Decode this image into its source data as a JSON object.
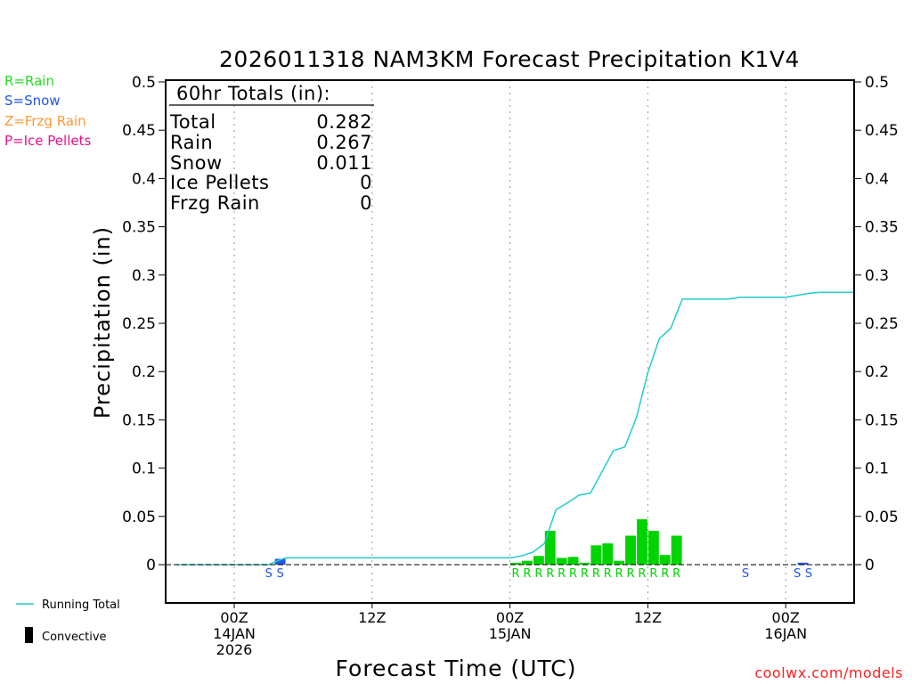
{
  "chart_data": {
    "type": "bar",
    "title": "2026011318 NAM3KM Forecast Precipitation K1V4",
    "xlabel": "Forecast Time (UTC)",
    "ylabel": "Precipitation (in)",
    "ylim": [
      -0.04,
      0.5
    ],
    "xlim": [
      -6,
      54
    ],
    "y_ticks": [
      "0.5",
      "0.45",
      "0.4",
      "0.35",
      "0.3",
      "0.25",
      "0.2",
      "0.15",
      "0.1",
      "0.05",
      "0"
    ],
    "x_ticks": [
      {
        "hour": 0,
        "lines": [
          "00Z",
          "14JAN",
          "2026"
        ]
      },
      {
        "hour": 12,
        "lines": [
          "12Z"
        ]
      },
      {
        "hour": 24,
        "lines": [
          "00Z",
          "15JAN"
        ]
      },
      {
        "hour": 36,
        "lines": [
          "12Z"
        ]
      },
      {
        "hour": 48,
        "lines": [
          "00Z",
          "16JAN"
        ]
      }
    ],
    "legend": [
      {
        "label": "R=Rain",
        "color": "#22dd22"
      },
      {
        "label": "S=Snow",
        "color": "#2255ee"
      },
      {
        "label": "Z=Frzg Rain",
        "color": "#ff9933"
      },
      {
        "label": "P=Ice Pellets",
        "color": "#ee1188"
      }
    ],
    "bottom_legend": {
      "running_total": "Running Total",
      "convective": "Convective"
    },
    "totals": {
      "header": "60hr Totals (in):",
      "rows": [
        {
          "label": "Total",
          "value": "0.282"
        },
        {
          "label": "Rain",
          "value": "0.267"
        },
        {
          "label": "Snow",
          "value": "0.011"
        },
        {
          "label": "Ice Pellets",
          "value": "0"
        },
        {
          "label": "Frzg Rain",
          "value": "0"
        }
      ]
    },
    "bars": [
      {
        "hour": 4,
        "value": 0.006,
        "type": "S"
      },
      {
        "hour": 24.5,
        "value": 0.002,
        "type": "R"
      },
      {
        "hour": 25.5,
        "value": 0.004,
        "type": "R"
      },
      {
        "hour": 26.5,
        "value": 0.009,
        "type": "R"
      },
      {
        "hour": 27.5,
        "value": 0.035,
        "type": "R"
      },
      {
        "hour": 28.5,
        "value": 0.007,
        "type": "R"
      },
      {
        "hour": 29.5,
        "value": 0.008,
        "type": "R"
      },
      {
        "hour": 30.5,
        "value": 0.002,
        "type": "R"
      },
      {
        "hour": 31.5,
        "value": 0.02,
        "type": "R"
      },
      {
        "hour": 32.5,
        "value": 0.022,
        "type": "R"
      },
      {
        "hour": 33.5,
        "value": 0.004,
        "type": "R"
      },
      {
        "hour": 34.5,
        "value": 0.03,
        "type": "R"
      },
      {
        "hour": 35.5,
        "value": 0.047,
        "type": "R"
      },
      {
        "hour": 36.5,
        "value": 0.035,
        "type": "R"
      },
      {
        "hour": 37.5,
        "value": 0.01,
        "type": "R"
      },
      {
        "hour": 38.5,
        "value": 0.03,
        "type": "R"
      },
      {
        "hour": 49.5,
        "value": 0.002,
        "type": "S"
      }
    ],
    "type_marks": [
      {
        "hour": 3,
        "type": "S"
      },
      {
        "hour": 4,
        "type": "S"
      },
      {
        "hour": 24.5,
        "type": "R"
      },
      {
        "hour": 25.5,
        "type": "R"
      },
      {
        "hour": 26.5,
        "type": "R"
      },
      {
        "hour": 27.5,
        "type": "R"
      },
      {
        "hour": 28.5,
        "type": "R"
      },
      {
        "hour": 29.5,
        "type": "R"
      },
      {
        "hour": 30.5,
        "type": "R"
      },
      {
        "hour": 31.5,
        "type": "R"
      },
      {
        "hour": 32.5,
        "type": "R"
      },
      {
        "hour": 33.5,
        "type": "R"
      },
      {
        "hour": 34.5,
        "type": "R"
      },
      {
        "hour": 35.5,
        "type": "R"
      },
      {
        "hour": 36.5,
        "type": "R"
      },
      {
        "hour": 37.5,
        "type": "R"
      },
      {
        "hour": 38.5,
        "type": "R"
      },
      {
        "hour": 44.5,
        "type": "S"
      },
      {
        "hour": 49,
        "type": "S"
      },
      {
        "hour": 50,
        "type": "S"
      }
    ],
    "running_total": {
      "x": [
        -5,
        3,
        4,
        4.5,
        24,
        25,
        26,
        27,
        28,
        29,
        30,
        31,
        32,
        33,
        34,
        35,
        36,
        37,
        38,
        39,
        43,
        44,
        48,
        49,
        50,
        51,
        52,
        54
      ],
      "y": [
        0,
        0,
        0.005,
        0.007,
        0.007,
        0.009,
        0.013,
        0.022,
        0.057,
        0.064,
        0.072,
        0.074,
        0.096,
        0.118,
        0.122,
        0.152,
        0.199,
        0.234,
        0.245,
        0.275,
        0.275,
        0.277,
        0.277,
        0.279,
        0.281,
        0.282,
        0.282,
        0.282
      ]
    },
    "colors": {
      "rain": "#00d400",
      "snow": "#2255ee",
      "total_line": "#22cccc",
      "axis": "#000000"
    }
  },
  "footer": "coolwx.com/models"
}
